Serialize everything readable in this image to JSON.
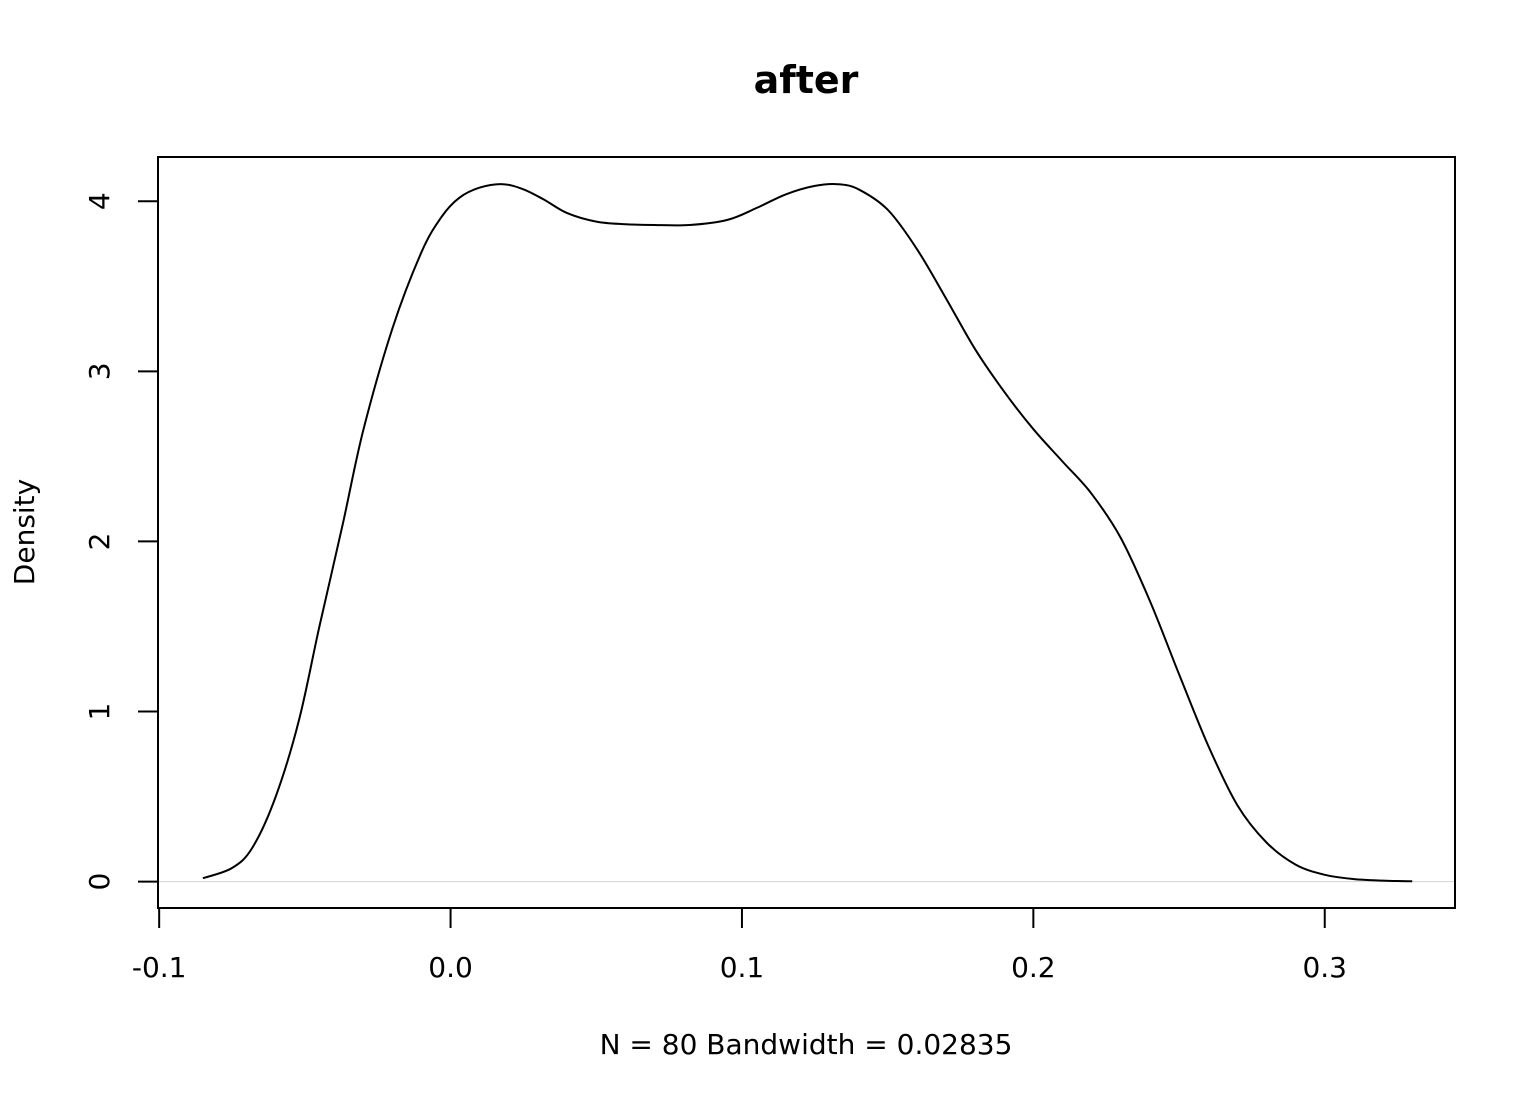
{
  "chart_data": {
    "type": "line",
    "title": "after",
    "xlabel": "N = 80   Bandwidth = 0.02835",
    "ylabel": "Density",
    "xlim": [
      -0.1004,
      0.3447
    ],
    "ylim": [
      -0.155,
      4.26
    ],
    "x_ticks": [
      -0.1,
      0.0,
      0.1,
      0.2,
      0.3
    ],
    "x_tick_labels": [
      "-0.1",
      "0.0",
      "0.1",
      "0.2",
      "0.3"
    ],
    "y_ticks": [
      0,
      1,
      2,
      3,
      4
    ],
    "y_tick_labels": [
      "0",
      "1",
      "2",
      "3",
      "4"
    ],
    "grid": false,
    "zero_line_color": "#d3d3d3",
    "line_color": "#000000",
    "series": [
      {
        "x": [
          -0.085,
          -0.075,
          -0.068,
          -0.06,
          -0.052,
          -0.045,
          -0.037,
          -0.03,
          -0.02,
          -0.01,
          -0.003,
          0.003,
          0.01,
          0.018,
          0.025,
          0.032,
          0.04,
          0.05,
          0.06,
          0.07,
          0.082,
          0.095,
          0.105,
          0.115,
          0.125,
          0.133,
          0.14,
          0.15,
          0.16,
          0.17,
          0.18,
          0.19,
          0.2,
          0.21,
          0.22,
          0.23,
          0.24,
          0.25,
          0.26,
          0.27,
          0.28,
          0.29,
          0.3,
          0.31,
          0.32,
          0.33
        ],
        "y": [
          0.02,
          0.08,
          0.2,
          0.5,
          0.95,
          1.5,
          2.1,
          2.65,
          3.25,
          3.7,
          3.91,
          4.02,
          4.08,
          4.1,
          4.07,
          4.01,
          3.93,
          3.88,
          3.865,
          3.86,
          3.86,
          3.89,
          3.96,
          4.04,
          4.09,
          4.1,
          4.07,
          3.95,
          3.72,
          3.43,
          3.13,
          2.88,
          2.66,
          2.47,
          2.28,
          2.02,
          1.65,
          1.22,
          0.8,
          0.45,
          0.23,
          0.1,
          0.04,
          0.015,
          0.006,
          0.002
        ]
      }
    ]
  }
}
